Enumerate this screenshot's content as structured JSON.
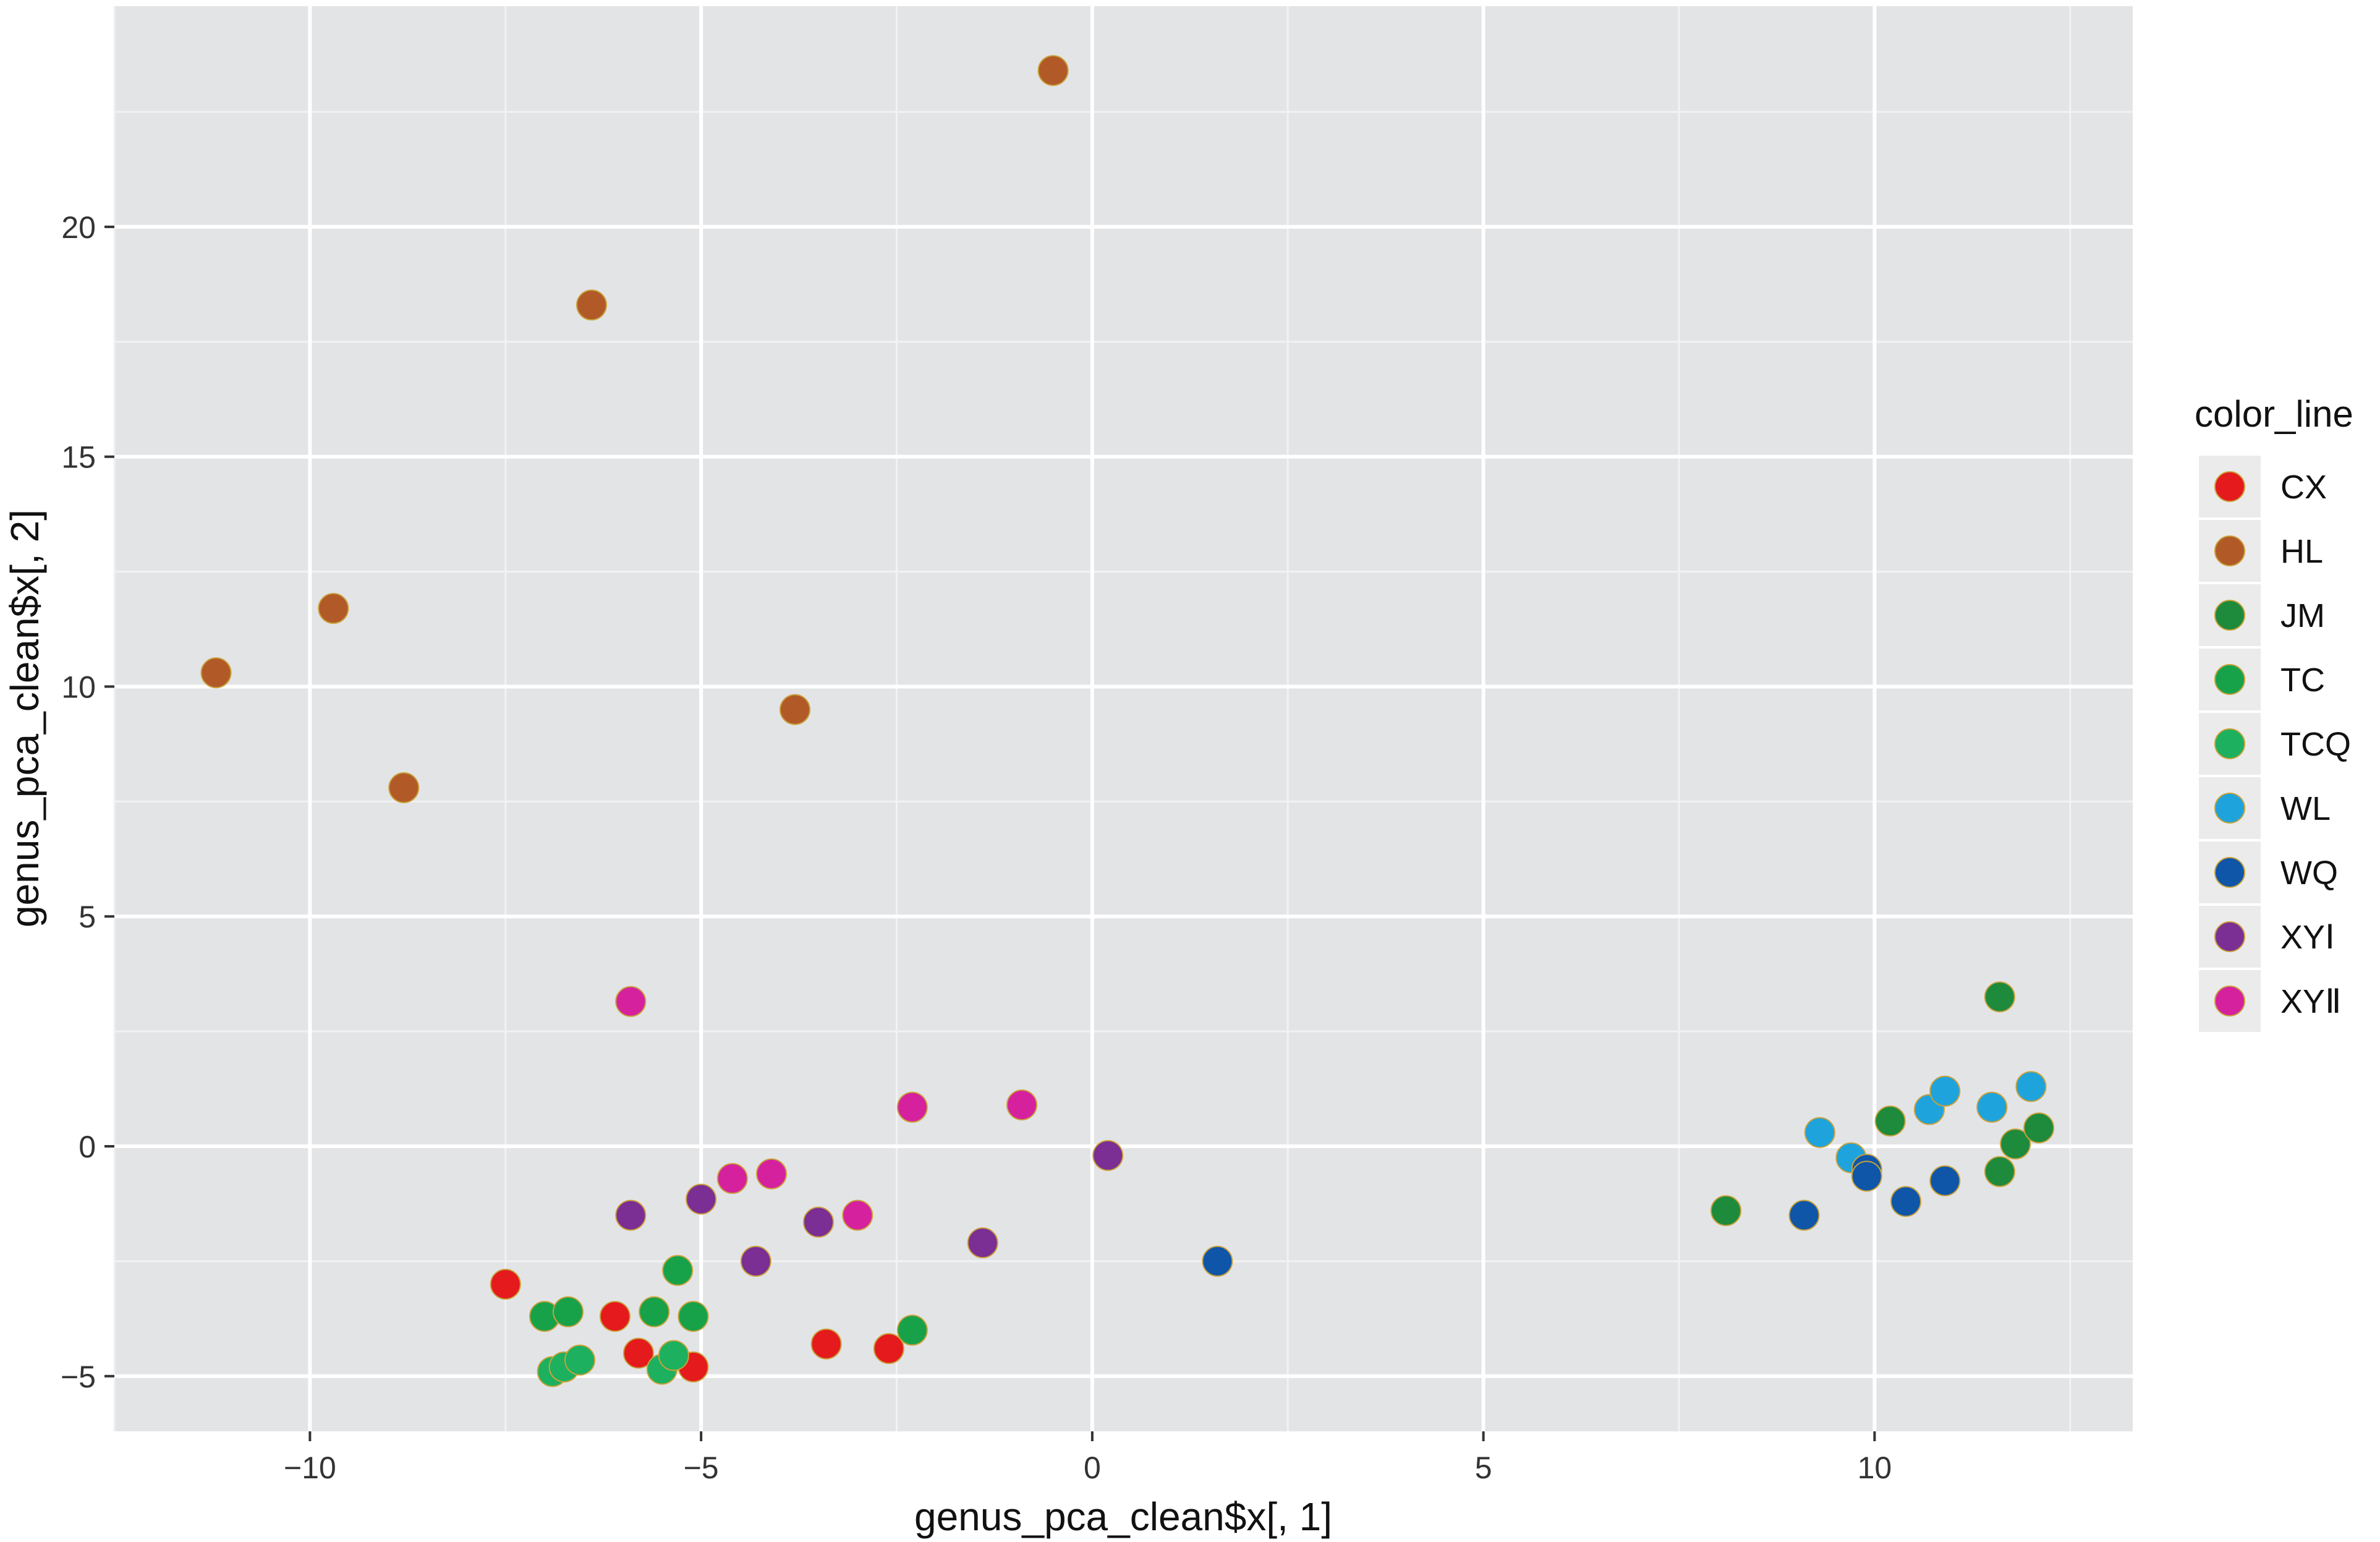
{
  "chart_data": {
    "type": "scatter",
    "xlabel": "genus_pca_clean$x[, 1]",
    "ylabel": "genus_pca_clean$x[, 2]",
    "xlim": [
      -12.5,
      13.3
    ],
    "ylim": [
      -6.2,
      24.8
    ],
    "x_ticks": [
      -10,
      -5,
      0,
      5,
      10
    ],
    "x_tick_labels": [
      "−10",
      "−5",
      "0",
      "5",
      "10"
    ],
    "y_ticks": [
      -5,
      0,
      5,
      10,
      15,
      20
    ],
    "y_tick_labels": [
      "−5",
      "0",
      "5",
      "10",
      "15",
      "20"
    ],
    "grid": true,
    "legend": {
      "title": "color_line",
      "position": "right"
    },
    "series": [
      {
        "name": "CX",
        "color": "#E41A1C",
        "points": [
          [
            -7.5,
            -3.0
          ],
          [
            -6.1,
            -3.7
          ],
          [
            -5.8,
            -4.5
          ],
          [
            -5.1,
            -4.8
          ],
          [
            -3.4,
            -4.3
          ],
          [
            -2.6,
            -4.4
          ]
        ]
      },
      {
        "name": "HL",
        "color": "#B15A28",
        "points": [
          [
            -11.2,
            10.3
          ],
          [
            -9.7,
            11.7
          ],
          [
            -8.8,
            7.8
          ],
          [
            -6.4,
            18.3
          ],
          [
            -3.8,
            9.5
          ],
          [
            -0.5,
            23.4
          ]
        ]
      },
      {
        "name": "JM",
        "color": "#1E8A3C",
        "points": [
          [
            8.1,
            -1.4
          ],
          [
            10.2,
            0.55
          ],
          [
            11.6,
            3.25
          ],
          [
            11.6,
            -0.55
          ],
          [
            11.8,
            0.05
          ],
          [
            12.1,
            0.4
          ]
        ]
      },
      {
        "name": "TC",
        "color": "#17A24A",
        "points": [
          [
            -7.0,
            -3.7
          ],
          [
            -6.7,
            -3.6
          ],
          [
            -5.6,
            -3.6
          ],
          [
            -5.3,
            -2.7
          ],
          [
            -5.1,
            -3.7
          ],
          [
            -2.3,
            -4.0
          ]
        ]
      },
      {
        "name": "TCQ",
        "color": "#1DB05E",
        "points": [
          [
            -6.9,
            -4.9
          ],
          [
            -6.75,
            -4.8
          ],
          [
            -6.55,
            -4.65
          ],
          [
            -5.5,
            -4.85
          ],
          [
            -5.35,
            -4.55
          ]
        ]
      },
      {
        "name": "WL",
        "color": "#1FA3DC",
        "points": [
          [
            9.3,
            0.3
          ],
          [
            9.7,
            -0.25
          ],
          [
            10.7,
            0.8
          ],
          [
            10.9,
            1.2
          ],
          [
            11.5,
            0.85
          ],
          [
            12.0,
            1.3
          ]
        ]
      },
      {
        "name": "WQ",
        "color": "#0F55A8",
        "points": [
          [
            1.6,
            -2.5
          ],
          [
            9.1,
            -1.5
          ],
          [
            9.9,
            -0.5
          ],
          [
            9.9,
            -0.65
          ],
          [
            10.4,
            -1.2
          ],
          [
            10.9,
            -0.75
          ]
        ]
      },
      {
        "name": "XYⅠ",
        "color": "#7B2E93",
        "points": [
          [
            -5.9,
            -1.5
          ],
          [
            -5.0,
            -1.15
          ],
          [
            -4.3,
            -2.5
          ],
          [
            -3.5,
            -1.65
          ],
          [
            -1.4,
            -2.1
          ],
          [
            0.2,
            -0.2
          ]
        ]
      },
      {
        "name": "XYⅡ",
        "color": "#D6219E",
        "points": [
          [
            -5.9,
            3.15
          ],
          [
            -4.6,
            -0.7
          ],
          [
            -4.1,
            -0.6
          ],
          [
            -3.0,
            -1.5
          ],
          [
            -2.3,
            0.85
          ],
          [
            -0.9,
            0.9
          ]
        ]
      }
    ]
  }
}
